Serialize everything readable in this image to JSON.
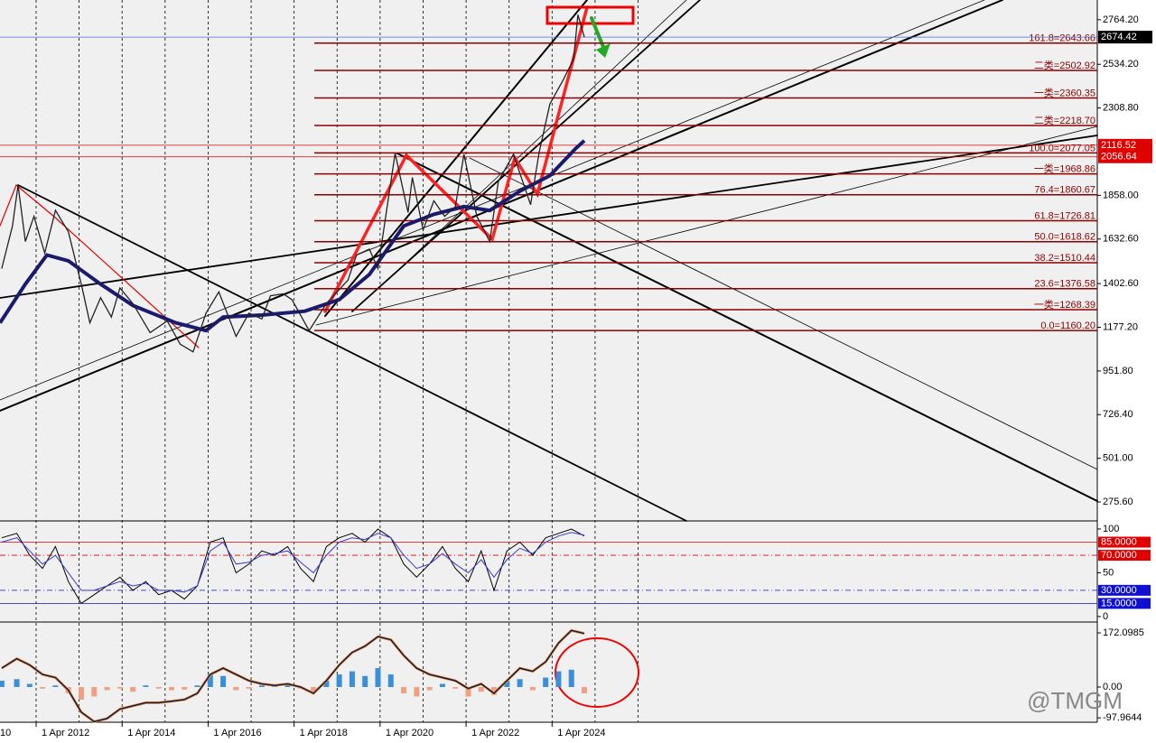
{
  "chart_data": [
    {
      "type": "line",
      "color": "#222222",
      "ma_color": "#1a1a6e",
      "x": [
        2011.45,
        2011.7,
        2011.83,
        2012.0,
        2012.2,
        2012.45,
        2012.7,
        2013.0,
        2013.3,
        2013.5,
        2013.75,
        2014.0,
        2014.2,
        2014.5,
        2014.9,
        2015.3,
        2015.6,
        2015.9,
        2016.2,
        2016.5,
        2016.9,
        2017.2,
        2017.5,
        2017.7,
        2018.0,
        2018.2,
        2018.6,
        2019.0,
        2019.5,
        2019.7,
        2020.0,
        2020.2,
        2020.6,
        2020.9,
        2021.0,
        2021.25,
        2021.5,
        2021.75,
        2022.0,
        2022.2,
        2022.5,
        2022.8,
        2023.0,
        2023.35,
        2023.75,
        2023.95,
        2024.2,
        2024.5,
        2024.75,
        2024.85,
        2025.0
      ],
      "values": [
        1480,
        1700,
        1910,
        1620,
        1750,
        1560,
        1780,
        1670,
        1400,
        1200,
        1330,
        1230,
        1380,
        1300,
        1150,
        1210,
        1090,
        1050,
        1250,
        1360,
        1130,
        1250,
        1220,
        1340,
        1350,
        1320,
        1160,
        1300,
        1420,
        1550,
        1580,
        1480,
        2075,
        1770,
        1950,
        1680,
        1830,
        1750,
        1800,
        2070,
        1750,
        1620,
        1930,
        2070,
        1810,
        2080,
        2330,
        2450,
        2560,
        2790,
        2674.42
      ],
      "ma_x": [
        2011.41,
        2012.0,
        2012.5,
        2013.0,
        2013.75,
        2014.5,
        2015.5,
        2016.2,
        2016.6,
        2017.5,
        2018.5,
        2019.3,
        2020.0,
        2020.8,
        2021.5,
        2022.2,
        2022.8,
        2023.5,
        2024.2,
        2024.8,
        2025.0
      ],
      "ma_values": [
        1200,
        1400,
        1550,
        1520,
        1400,
        1290,
        1200,
        1160,
        1230,
        1240,
        1260,
        1320,
        1450,
        1700,
        1760,
        1800,
        1780,
        1880,
        1960,
        2100,
        2140
      ],
      "xlim": [
        2011.41,
        2036.93
      ],
      "ylim": [
        178,
        2866
      ],
      "yticks": [
        {
          "value": 2764.2,
          "label": "2764.20"
        },
        {
          "value": 2534.2,
          "label": "2534.20"
        },
        {
          "value": 2308.8,
          "label": "2308.80"
        },
        {
          "value": 1858,
          "label": "1858.00"
        },
        {
          "value": 1632.6,
          "label": "1632.60"
        },
        {
          "value": 1402.6,
          "label": "1402.60"
        },
        {
          "value": 1177.2,
          "label": "1177.20"
        },
        {
          "value": 951.8,
          "label": "951.80"
        },
        {
          "value": 726.4,
          "label": "726.40"
        },
        {
          "value": 501,
          "label": "501.00"
        },
        {
          "value": 275.6,
          "label": "275.60"
        }
      ],
      "xgrid": [
        2012.25,
        2013.25,
        2014.25,
        2015.25,
        2016.25,
        2017.25,
        2018.25,
        2019.25,
        2020.25,
        2021.25,
        2022.25,
        2023.25,
        2024.25,
        2025.25,
        2026.25
      ],
      "xticks": [
        {
          "value": 2012.25,
          "label": "1 Apr 2012"
        },
        {
          "value": 2014.25,
          "label": "1 Apr 2014"
        },
        {
          "value": 2016.25,
          "label": "1 Apr 2016"
        },
        {
          "value": 2018.25,
          "label": "1 Apr 2018"
        },
        {
          "value": 2020.25,
          "label": "1 Apr 2020"
        },
        {
          "value": 2022.25,
          "label": "1 Apr 2022"
        },
        {
          "value": 2024.25,
          "label": "1 Apr 2024"
        }
      ],
      "xtick_fragment": "10",
      "levels": [
        {
          "value": 2643.66,
          "label": "161.8=2643.66"
        },
        {
          "value": 2502.92,
          "label": "二类=2502.92"
        },
        {
          "value": 2360.35,
          "label": "一类=2360.35"
        },
        {
          "value": 2218.7,
          "label": "二类=2218.70"
        },
        {
          "value": 2077.05,
          "label": "100.0=2077.05"
        },
        {
          "value": 1968.86,
          "label": "一类=1968.86"
        },
        {
          "value": 1860.67,
          "label": "76.4=1860.67"
        },
        {
          "value": 1726.81,
          "label": "61.8=1726.81"
        },
        {
          "value": 1618.62,
          "label": "50.0=1618.62"
        },
        {
          "value": 1510.44,
          "label": "38.2=1510.44"
        },
        {
          "value": 1376.58,
          "label": "23.6=1376.58"
        },
        {
          "value": 1268.39,
          "label": "一类=1268.39"
        },
        {
          "value": 1160.2,
          "label": "0.0=1160.20"
        }
      ],
      "level_color": "#8b0000",
      "price_tags": [
        {
          "value": 2674.42,
          "color": "#000000",
          "line": "#4a6fd8"
        },
        {
          "value": 2116.52,
          "color": "#e00000",
          "line": "#e00000"
        },
        {
          "value": 2056.64,
          "color": "#e00000",
          "line": "#e00000"
        }
      ]
    },
    {
      "type": "line",
      "x": [
        2011.45,
        2011.8,
        2012.1,
        2012.4,
        2012.7,
        2013.0,
        2013.3,
        2013.6,
        2013.9,
        2014.2,
        2014.5,
        2014.8,
        2015.1,
        2015.4,
        2015.7,
        2016.0,
        2016.3,
        2016.6,
        2016.9,
        2017.2,
        2017.5,
        2017.8,
        2018.1,
        2018.4,
        2018.7,
        2019.0,
        2019.3,
        2019.6,
        2019.9,
        2020.2,
        2020.5,
        2020.8,
        2021.1,
        2021.4,
        2021.7,
        2022.0,
        2022.3,
        2022.6,
        2022.9,
        2023.2,
        2023.5,
        2023.8,
        2024.1,
        2024.4,
        2024.7,
        2025.0
      ],
      "series": [
        {
          "color": "#000000",
          "values": [
            90,
            95,
            70,
            55,
            80,
            40,
            15,
            25,
            35,
            45,
            30,
            40,
            25,
            30,
            20,
            35,
            85,
            90,
            50,
            60,
            75,
            70,
            80,
            55,
            40,
            80,
            90,
            95,
            85,
            100,
            90,
            60,
            45,
            60,
            80,
            55,
            40,
            75,
            30,
            75,
            85,
            70,
            90,
            95,
            100,
            92
          ]
        },
        {
          "color": "#3a3ad0",
          "values": [
            85,
            90,
            75,
            60,
            70,
            50,
            30,
            30,
            35,
            40,
            35,
            38,
            30,
            30,
            28,
            35,
            75,
            85,
            60,
            62,
            70,
            72,
            75,
            62,
            50,
            70,
            85,
            90,
            88,
            95,
            90,
            70,
            55,
            60,
            72,
            60,
            50,
            65,
            45,
            65,
            78,
            72,
            85,
            92,
            96,
            93
          ]
        }
      ],
      "ylim": [
        -5.2,
        108.2
      ],
      "yticks": [
        100,
        50,
        0
      ],
      "levels": [
        {
          "value": 85,
          "label": "85.0000",
          "color": "#e00000"
        },
        {
          "value": 70,
          "label": "70.0000",
          "color": "#e00000"
        },
        {
          "value": 30,
          "label": "30.0000",
          "color": "#1010d0"
        },
        {
          "value": 15,
          "label": "15.0000",
          "color": "#1010d0"
        }
      ]
    },
    {
      "type": "bar",
      "positive_color": "#3a8fd8",
      "negative_color": "#f0a080",
      "line_color": "#111166",
      "signal_color": "#f0a020",
      "x": [
        2011.45,
        2011.8,
        2012.1,
        2012.4,
        2012.7,
        2013.0,
        2013.3,
        2013.6,
        2013.9,
        2014.2,
        2014.5,
        2014.8,
        2015.1,
        2015.4,
        2015.7,
        2016.0,
        2016.3,
        2016.6,
        2016.9,
        2017.2,
        2017.5,
        2017.8,
        2018.1,
        2018.4,
        2018.7,
        2019.0,
        2019.3,
        2019.6,
        2019.9,
        2020.2,
        2020.5,
        2020.8,
        2021.1,
        2021.4,
        2021.7,
        2022.0,
        2022.3,
        2022.6,
        2022.9,
        2023.2,
        2023.5,
        2023.8,
        2024.1,
        2024.4,
        2024.7,
        2025.0
      ],
      "values": [
        20,
        25,
        10,
        -5,
        5,
        -20,
        -40,
        -30,
        -10,
        -5,
        -15,
        5,
        -5,
        -10,
        -8,
        5,
        40,
        35,
        -10,
        -5,
        5,
        5,
        10,
        -5,
        -15,
        20,
        40,
        50,
        35,
        60,
        40,
        -20,
        -30,
        -10,
        10,
        -5,
        -30,
        -15,
        -25,
        20,
        25,
        -10,
        30,
        50,
        55,
        -20
      ],
      "line_values": [
        60,
        90,
        70,
        40,
        30,
        -10,
        -80,
        -110,
        -100,
        -70,
        -60,
        -50,
        -50,
        -45,
        -40,
        -20,
        40,
        60,
        40,
        20,
        10,
        5,
        10,
        0,
        -20,
        20,
        70,
        110,
        130,
        160,
        150,
        100,
        60,
        40,
        30,
        20,
        -5,
        10,
        -20,
        20,
        60,
        50,
        80,
        140,
        180,
        170
      ],
      "ylim": [
        -111.9,
        203.7
      ],
      "yticks": [
        172.0985,
        {
          "value": 0,
          "label": "0.00"
        },
        -97.9644
      ]
    }
  ],
  "watermark": "@TMGM"
}
